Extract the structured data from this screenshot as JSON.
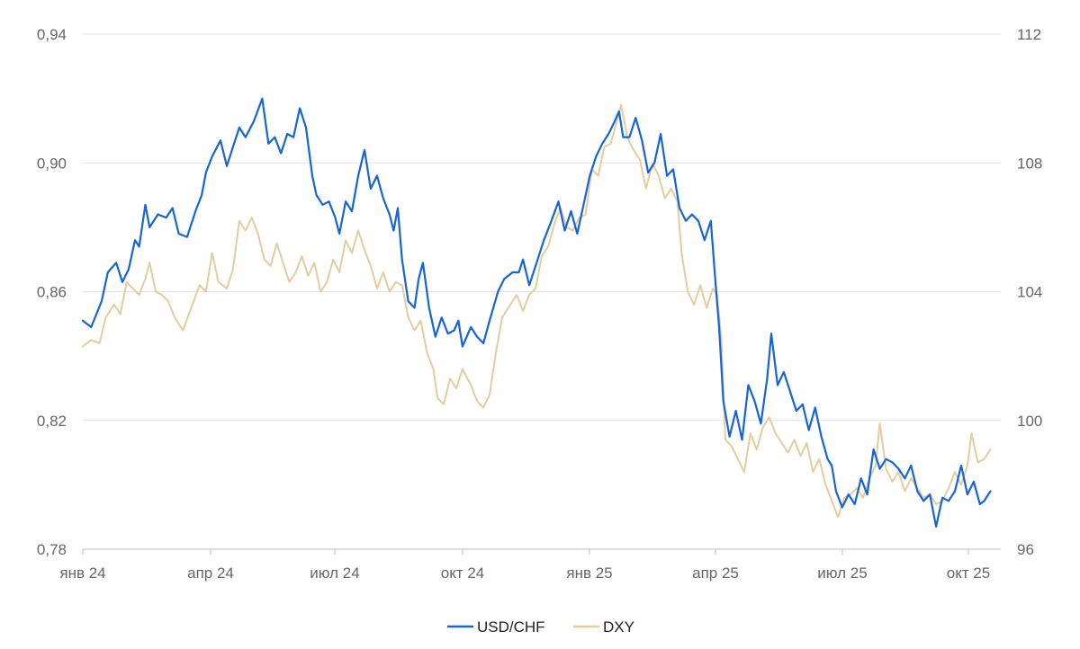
{
  "chart_data": {
    "type": "line",
    "title": "",
    "xlabel": "",
    "ylabel": "",
    "grid": true,
    "legend_position": "bottom-center",
    "x_tick_labels": [
      "янв 24",
      "апр 24",
      "июл 24",
      "окт 24",
      "янв 25",
      "апр 25",
      "июл 25",
      "окт 25"
    ],
    "y_left": {
      "ylim": [
        0.78,
        0.94
      ],
      "tick_labels": [
        "0,78",
        "0,82",
        "0,86",
        "0,90",
        "0,94"
      ]
    },
    "y_right": {
      "ylim": [
        96,
        112
      ],
      "tick_labels": [
        "96",
        "100",
        "104",
        "108",
        "112"
      ]
    },
    "x_domain_months": [
      0,
      22.0
    ],
    "series": [
      {
        "name": "USD/CHF",
        "axis": "left",
        "color": "#1565d8",
        "points": [
          [
            0.0,
            0.851
          ],
          [
            0.2,
            0.849
          ],
          [
            0.45,
            0.857
          ],
          [
            0.6,
            0.866
          ],
          [
            0.8,
            0.869
          ],
          [
            0.95,
            0.863
          ],
          [
            1.1,
            0.867
          ],
          [
            1.25,
            0.876
          ],
          [
            1.35,
            0.874
          ],
          [
            1.5,
            0.887
          ],
          [
            1.6,
            0.88
          ],
          [
            1.8,
            0.884
          ],
          [
            2.0,
            0.883
          ],
          [
            2.15,
            0.886
          ],
          [
            2.3,
            0.878
          ],
          [
            2.5,
            0.877
          ],
          [
            2.7,
            0.885
          ],
          [
            2.85,
            0.89
          ],
          [
            2.95,
            0.897
          ],
          [
            3.1,
            0.902
          ],
          [
            3.3,
            0.907
          ],
          [
            3.45,
            0.899
          ],
          [
            3.6,
            0.905
          ],
          [
            3.75,
            0.911
          ],
          [
            3.9,
            0.908
          ],
          [
            4.1,
            0.913
          ],
          [
            4.3,
            0.92
          ],
          [
            4.45,
            0.906
          ],
          [
            4.6,
            0.908
          ],
          [
            4.75,
            0.903
          ],
          [
            4.9,
            0.909
          ],
          [
            5.05,
            0.908
          ],
          [
            5.2,
            0.917
          ],
          [
            5.35,
            0.911
          ],
          [
            5.5,
            0.896
          ],
          [
            5.6,
            0.89
          ],
          [
            5.75,
            0.887
          ],
          [
            5.9,
            0.888
          ],
          [
            6.05,
            0.883
          ],
          [
            6.15,
            0.878
          ],
          [
            6.3,
            0.888
          ],
          [
            6.45,
            0.885
          ],
          [
            6.6,
            0.896
          ],
          [
            6.75,
            0.904
          ],
          [
            6.9,
            0.892
          ],
          [
            7.05,
            0.896
          ],
          [
            7.2,
            0.889
          ],
          [
            7.35,
            0.884
          ],
          [
            7.45,
            0.879
          ],
          [
            7.55,
            0.886
          ],
          [
            7.65,
            0.87
          ],
          [
            7.8,
            0.857
          ],
          [
            7.95,
            0.855
          ],
          [
            8.05,
            0.864
          ],
          [
            8.15,
            0.869
          ],
          [
            8.3,
            0.855
          ],
          [
            8.45,
            0.846
          ],
          [
            8.6,
            0.852
          ],
          [
            8.75,
            0.847
          ],
          [
            8.9,
            0.848
          ],
          [
            9.0,
            0.851
          ],
          [
            9.1,
            0.843
          ],
          [
            9.3,
            0.849
          ],
          [
            9.45,
            0.846
          ],
          [
            9.6,
            0.844
          ],
          [
            9.75,
            0.851
          ],
          [
            9.95,
            0.86
          ],
          [
            10.1,
            0.864
          ],
          [
            10.3,
            0.866
          ],
          [
            10.45,
            0.866
          ],
          [
            10.55,
            0.87
          ],
          [
            10.7,
            0.862
          ],
          [
            10.9,
            0.87
          ],
          [
            11.05,
            0.876
          ],
          [
            11.2,
            0.881
          ],
          [
            11.4,
            0.888
          ],
          [
            11.55,
            0.879
          ],
          [
            11.7,
            0.885
          ],
          [
            11.85,
            0.878
          ],
          [
            12.0,
            0.887
          ],
          [
            12.15,
            0.896
          ],
          [
            12.3,
            0.902
          ],
          [
            12.45,
            0.906
          ],
          [
            12.6,
            0.909
          ],
          [
            12.75,
            0.913
          ],
          [
            12.85,
            0.916
          ],
          [
            12.95,
            0.908
          ],
          [
            13.1,
            0.908
          ],
          [
            13.25,
            0.914
          ],
          [
            13.4,
            0.907
          ],
          [
            13.55,
            0.897
          ],
          [
            13.7,
            0.9
          ],
          [
            13.85,
            0.909
          ],
          [
            14.0,
            0.896
          ],
          [
            14.15,
            0.898
          ],
          [
            14.3,
            0.886
          ],
          [
            14.45,
            0.882
          ],
          [
            14.6,
            0.884
          ],
          [
            14.75,
            0.882
          ],
          [
            14.9,
            0.876
          ],
          [
            15.05,
            0.882
          ],
          [
            15.15,
            0.865
          ],
          [
            15.25,
            0.849
          ],
          [
            15.35,
            0.826
          ],
          [
            15.5,
            0.815
          ],
          [
            15.65,
            0.823
          ],
          [
            15.8,
            0.814
          ],
          [
            15.95,
            0.831
          ],
          [
            16.1,
            0.826
          ],
          [
            16.25,
            0.819
          ],
          [
            16.4,
            0.833
          ],
          [
            16.5,
            0.847
          ],
          [
            16.65,
            0.831
          ],
          [
            16.8,
            0.835
          ],
          [
            16.95,
            0.829
          ],
          [
            17.1,
            0.823
          ],
          [
            17.25,
            0.825
          ],
          [
            17.4,
            0.817
          ],
          [
            17.55,
            0.824
          ],
          [
            17.7,
            0.815
          ],
          [
            17.85,
            0.808
          ],
          [
            17.95,
            0.806
          ],
          [
            18.05,
            0.798
          ],
          [
            18.2,
            0.793
          ],
          [
            18.35,
            0.797
          ],
          [
            18.5,
            0.794
          ],
          [
            18.65,
            0.802
          ],
          [
            18.8,
            0.797
          ],
          [
            18.95,
            0.811
          ],
          [
            19.1,
            0.805
          ],
          [
            19.25,
            0.808
          ],
          [
            19.4,
            0.807
          ],
          [
            19.55,
            0.805
          ],
          [
            19.7,
            0.802
          ],
          [
            19.85,
            0.806
          ],
          [
            20.0,
            0.798
          ],
          [
            20.15,
            0.795
          ],
          [
            20.3,
            0.797
          ],
          [
            20.45,
            0.787
          ],
          [
            20.6,
            0.796
          ],
          [
            20.75,
            0.795
          ],
          [
            20.9,
            0.798
          ],
          [
            21.05,
            0.806
          ],
          [
            21.2,
            0.797
          ],
          [
            21.35,
            0.801
          ],
          [
            21.5,
            0.794
          ],
          [
            21.6,
            0.795
          ],
          [
            21.75,
            0.798
          ]
        ]
      },
      {
        "name": "DXY",
        "axis": "right",
        "color": "#e3cc9e",
        "points": [
          [
            0.0,
            102.3
          ],
          [
            0.2,
            102.5
          ],
          [
            0.4,
            102.4
          ],
          [
            0.55,
            103.2
          ],
          [
            0.75,
            103.6
          ],
          [
            0.9,
            103.3
          ],
          [
            1.05,
            104.3
          ],
          [
            1.2,
            104.1
          ],
          [
            1.35,
            103.9
          ],
          [
            1.5,
            104.4
          ],
          [
            1.6,
            104.9
          ],
          [
            1.75,
            104.0
          ],
          [
            1.9,
            103.9
          ],
          [
            2.05,
            103.7
          ],
          [
            2.2,
            103.2
          ],
          [
            2.4,
            102.8
          ],
          [
            2.6,
            103.5
          ],
          [
            2.8,
            104.2
          ],
          [
            2.95,
            104.0
          ],
          [
            3.1,
            105.2
          ],
          [
            3.25,
            104.3
          ],
          [
            3.45,
            104.1
          ],
          [
            3.6,
            104.7
          ],
          [
            3.75,
            106.2
          ],
          [
            3.9,
            105.9
          ],
          [
            4.05,
            106.3
          ],
          [
            4.2,
            105.8
          ],
          [
            4.35,
            105.0
          ],
          [
            4.5,
            104.8
          ],
          [
            4.65,
            105.5
          ],
          [
            4.8,
            104.9
          ],
          [
            4.95,
            104.3
          ],
          [
            5.1,
            104.6
          ],
          [
            5.25,
            105.1
          ],
          [
            5.4,
            104.5
          ],
          [
            5.55,
            104.9
          ],
          [
            5.7,
            104.0
          ],
          [
            5.85,
            104.3
          ],
          [
            6.0,
            105.0
          ],
          [
            6.15,
            104.6
          ],
          [
            6.3,
            105.6
          ],
          [
            6.45,
            105.2
          ],
          [
            6.6,
            105.9
          ],
          [
            6.75,
            105.3
          ],
          [
            6.9,
            104.8
          ],
          [
            7.05,
            104.1
          ],
          [
            7.2,
            104.6
          ],
          [
            7.35,
            104.0
          ],
          [
            7.5,
            104.3
          ],
          [
            7.65,
            104.2
          ],
          [
            7.8,
            103.2
          ],
          [
            7.95,
            102.8
          ],
          [
            8.1,
            103.1
          ],
          [
            8.25,
            102.1
          ],
          [
            8.4,
            101.6
          ],
          [
            8.5,
            100.7
          ],
          [
            8.65,
            100.5
          ],
          [
            8.8,
            101.3
          ],
          [
            8.95,
            101.0
          ],
          [
            9.1,
            101.6
          ],
          [
            9.3,
            101.1
          ],
          [
            9.45,
            100.6
          ],
          [
            9.6,
            100.4
          ],
          [
            9.75,
            100.8
          ],
          [
            9.9,
            102.1
          ],
          [
            10.05,
            103.2
          ],
          [
            10.25,
            103.6
          ],
          [
            10.4,
            103.9
          ],
          [
            10.55,
            103.4
          ],
          [
            10.7,
            103.9
          ],
          [
            10.85,
            104.1
          ],
          [
            11.0,
            105.1
          ],
          [
            11.15,
            105.4
          ],
          [
            11.3,
            106.1
          ],
          [
            11.45,
            106.6
          ],
          [
            11.6,
            106.0
          ],
          [
            11.75,
            105.9
          ],
          [
            11.9,
            106.3
          ],
          [
            12.05,
            106.4
          ],
          [
            12.2,
            107.8
          ],
          [
            12.35,
            107.6
          ],
          [
            12.5,
            108.5
          ],
          [
            12.65,
            108.6
          ],
          [
            12.8,
            109.3
          ],
          [
            12.9,
            109.8
          ],
          [
            13.05,
            108.8
          ],
          [
            13.2,
            108.4
          ],
          [
            13.35,
            108.1
          ],
          [
            13.5,
            107.2
          ],
          [
            13.65,
            108.0
          ],
          [
            13.8,
            107.6
          ],
          [
            13.95,
            106.9
          ],
          [
            14.1,
            107.2
          ],
          [
            14.25,
            106.8
          ],
          [
            14.35,
            105.2
          ],
          [
            14.5,
            104.0
          ],
          [
            14.65,
            103.6
          ],
          [
            14.8,
            104.2
          ],
          [
            14.95,
            103.5
          ],
          [
            15.1,
            104.1
          ],
          [
            15.2,
            103.9
          ],
          [
            15.3,
            102.6
          ],
          [
            15.4,
            99.4
          ],
          [
            15.55,
            99.2
          ],
          [
            15.7,
            98.8
          ],
          [
            15.85,
            98.4
          ],
          [
            16.0,
            99.6
          ],
          [
            16.15,
            99.1
          ],
          [
            16.3,
            99.8
          ],
          [
            16.45,
            100.1
          ],
          [
            16.6,
            99.6
          ],
          [
            16.75,
            99.3
          ],
          [
            16.9,
            99.0
          ],
          [
            17.05,
            99.4
          ],
          [
            17.2,
            98.9
          ],
          [
            17.35,
            99.3
          ],
          [
            17.5,
            98.4
          ],
          [
            17.65,
            98.8
          ],
          [
            17.8,
            98.0
          ],
          [
            17.95,
            97.5
          ],
          [
            18.1,
            97.0
          ],
          [
            18.25,
            97.6
          ],
          [
            18.4,
            97.7
          ],
          [
            18.55,
            97.9
          ],
          [
            18.7,
            97.6
          ],
          [
            18.85,
            98.2
          ],
          [
            19.0,
            98.6
          ],
          [
            19.1,
            99.9
          ],
          [
            19.25,
            98.5
          ],
          [
            19.4,
            98.1
          ],
          [
            19.55,
            98.4
          ],
          [
            19.7,
            97.8
          ],
          [
            19.85,
            98.2
          ],
          [
            20.0,
            97.9
          ],
          [
            20.15,
            97.6
          ],
          [
            20.3,
            97.7
          ],
          [
            20.45,
            97.4
          ],
          [
            20.6,
            97.5
          ],
          [
            20.75,
            97.9
          ],
          [
            20.9,
            98.4
          ],
          [
            21.05,
            98.0
          ],
          [
            21.2,
            98.6
          ],
          [
            21.3,
            99.6
          ],
          [
            21.45,
            98.7
          ],
          [
            21.6,
            98.8
          ],
          [
            21.75,
            99.1
          ]
        ]
      }
    ]
  }
}
